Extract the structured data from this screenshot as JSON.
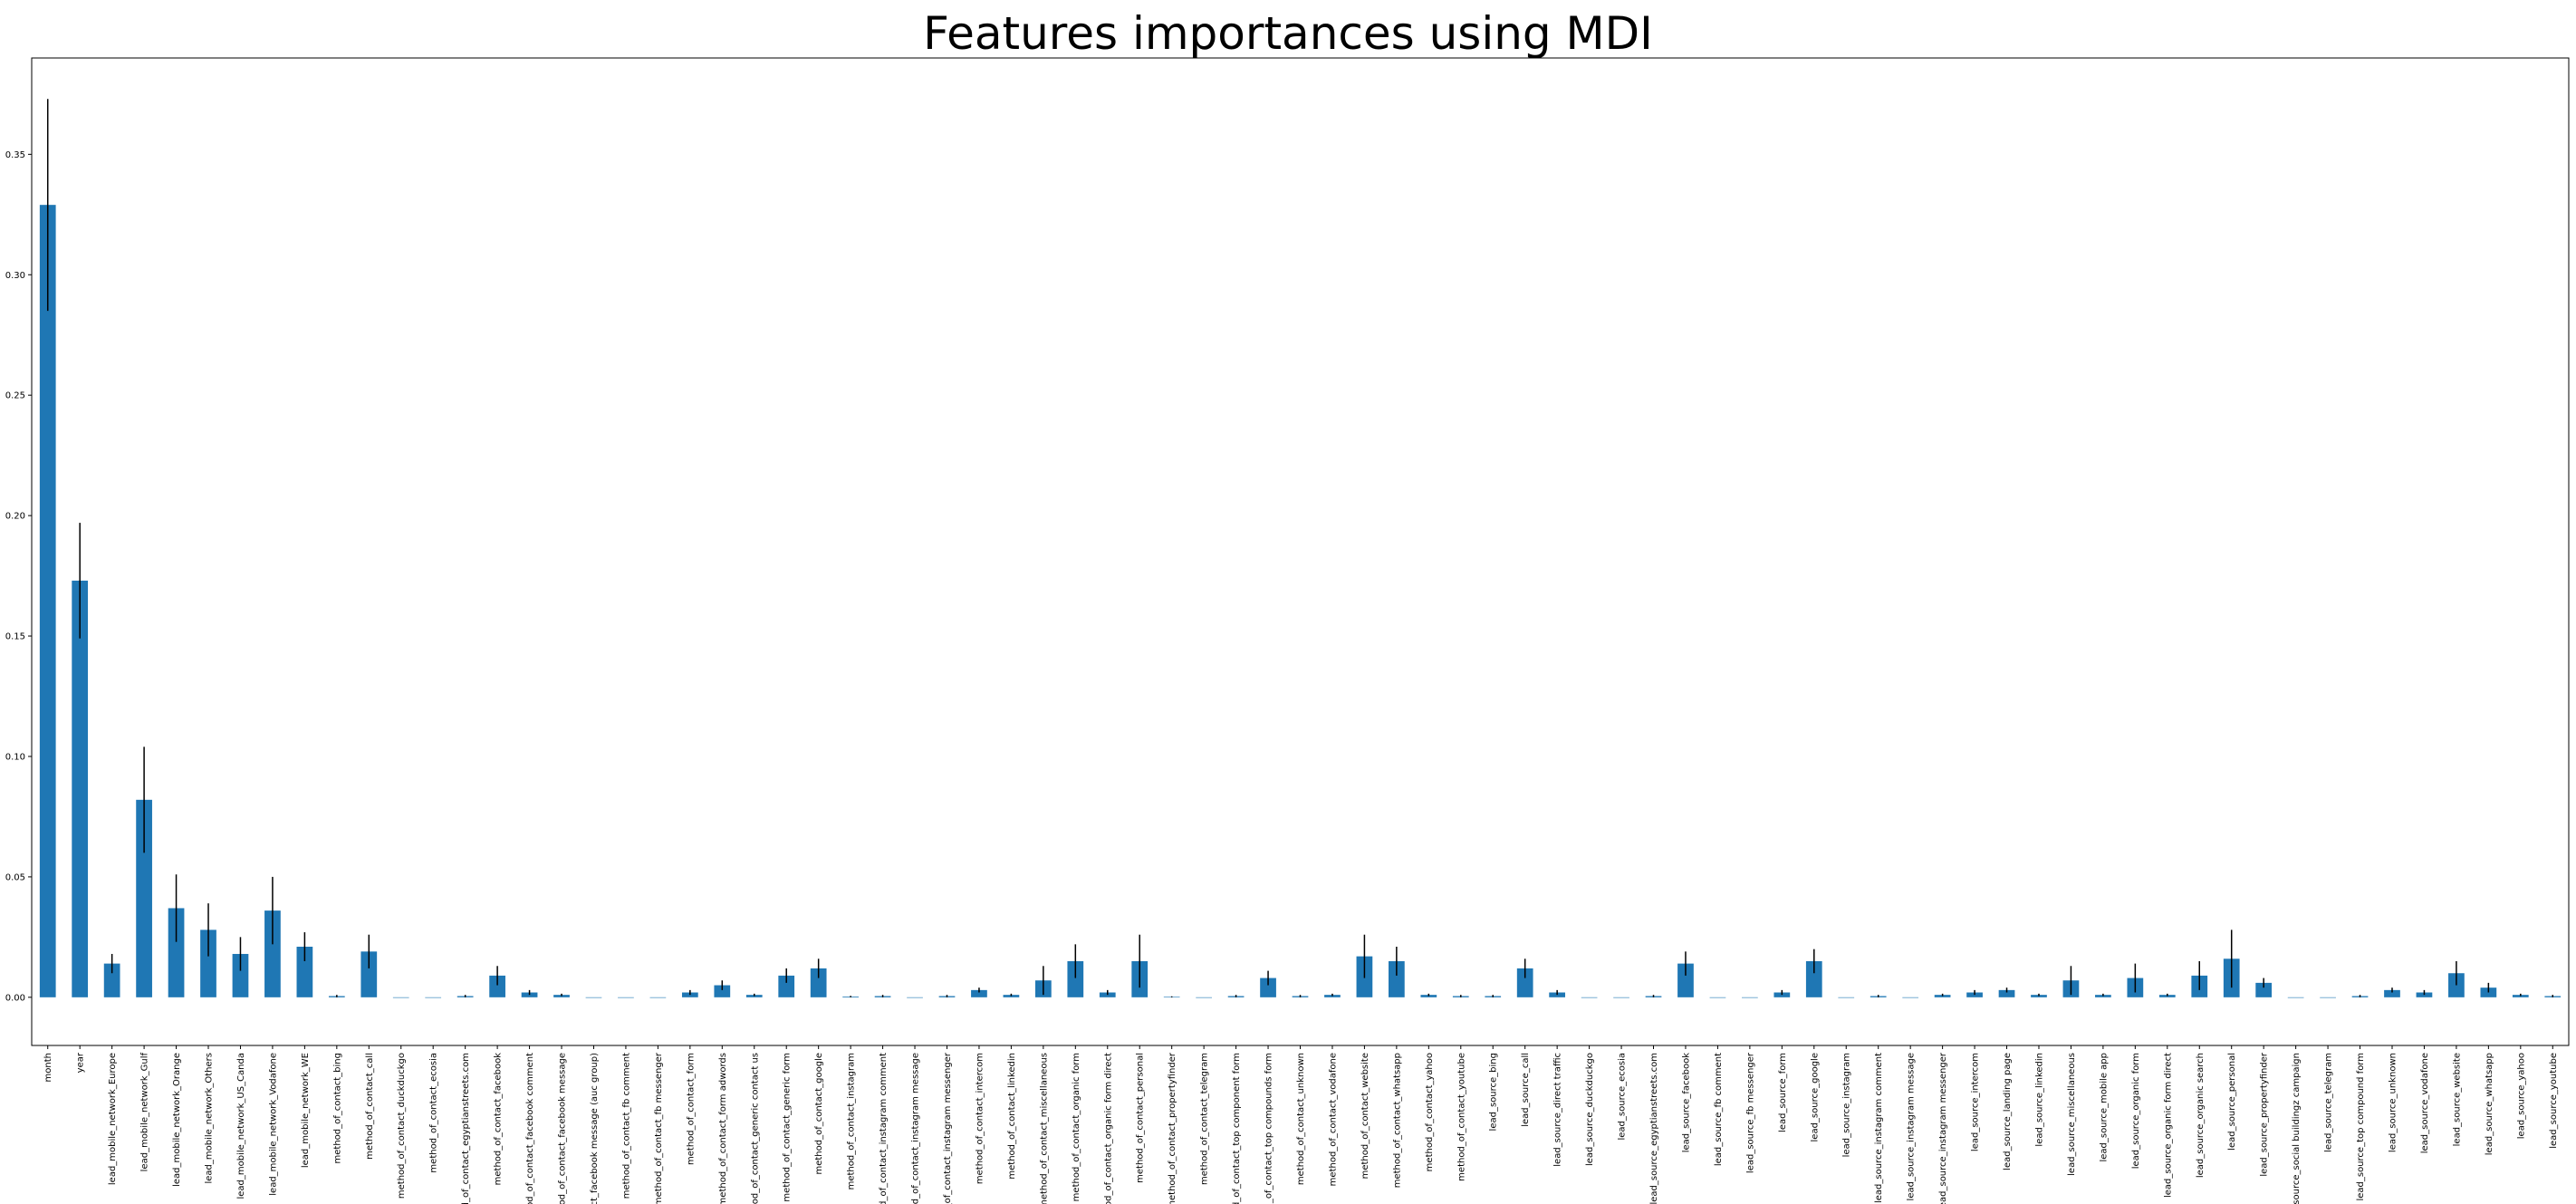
{
  "chart_data": {
    "type": "bar",
    "title": "Features importances using MDI",
    "xlabel": "",
    "ylabel": "",
    "ylim": [
      -0.02,
      0.39
    ],
    "yticks": [
      0.0,
      0.05,
      0.1,
      0.15,
      0.2,
      0.25,
      0.3,
      0.35
    ],
    "ytick_labels": [
      "0.00",
      "0.05",
      "0.10",
      "0.15",
      "0.20",
      "0.25",
      "0.30",
      "0.35"
    ],
    "grid": false,
    "bar_color": "#1f77b4",
    "error_color": "#000000",
    "categories": [
      "month",
      "year",
      "lead_mobile_network_Europe",
      "lead_mobile_network_Gulf",
      "lead_mobile_network_Orange",
      "lead_mobile_network_Others",
      "lead_mobile_network_US_Canda",
      "lead_mobile_network_Vodafone",
      "lead_mobile_network_WE",
      "method_of_contact_bing",
      "method_of_contact_call",
      "method_of_contact_duckduckgo",
      "method_of_contact_ecosia",
      "method_of_contact_egyptianstreets.com",
      "method_of_contact_facebook",
      "method_of_contact_facebook comment",
      "method_of_contact_facebook message",
      "method_of_contact_facebook message (auc group)",
      "method_of_contact_fb comment",
      "method_of_contact_fb messenger",
      "method_of_contact_form",
      "method_of_contact_form adwords",
      "method_of_contact_generic contact us",
      "method_of_contact_generic form",
      "method_of_contact_google",
      "method_of_contact_instagram",
      "method_of_contact_instagram comment",
      "method_of_contact_instagram message",
      "method_of_contact_instagram messenger",
      "method_of_contact_intercom",
      "method_of_contact_linkedin",
      "method_of_contact_miscellaneous",
      "method_of_contact_organic form",
      "method_of_contact_organic form direct",
      "method_of_contact_personal",
      "method_of_contact_propertyfinder",
      "method_of_contact_telegram",
      "method_of_contact_top component form",
      "method_of_contact_top compounds form",
      "method_of_contact_unknown",
      "method_of_contact_vodafone",
      "method_of_contact_website",
      "method_of_contact_whatsapp",
      "method_of_contact_yahoo",
      "method_of_contact_youtube",
      "lead_source_bing",
      "lead_source_call",
      "lead_source_direct traffic",
      "lead_source_duckduckgo",
      "lead_source_ecosia",
      "lead_source_egyptianstreets.com",
      "lead_source_facebook",
      "lead_source_fb comment",
      "lead_source_fb messenger",
      "lead_source_form",
      "lead_source_google",
      "lead_source_instagram",
      "lead_source_instagram comment",
      "lead_source_instagram message",
      "lead_source_instagram messenger",
      "lead_source_intercom",
      "lead_source_landing page",
      "lead_source_linkedin",
      "lead_source_miscellaneous",
      "lead_source_mobile app",
      "lead_source_organic form",
      "lead_source_organic form direct",
      "lead_source_organic search",
      "lead_source_personal",
      "lead_source_propertyfinder",
      "lead_source_social buildingz campaign",
      "lead_source_telegram",
      "lead_source_top compound form",
      "lead_source_unknown",
      "lead_source_vodafone",
      "lead_source_website",
      "lead_source_whatsapp",
      "lead_source_yahoo",
      "lead_source_youtube"
    ],
    "tick_labels": [
      "month",
      "year",
      "lead_mobile_network_Europe",
      "lead_mobile_network_Gulf",
      "lead_mobile_network_Orange",
      "lead_mobile_network_Others",
      "lead_mobile_network_US_Canda",
      "lead_mobile_network_Vodafone",
      "lead_mobile_network_WE",
      "method_of_contact_bing",
      "method_of_contact_call",
      "method_of_contact_duckduckgo",
      "method_of_contact_ecosia",
      "d_of_contact_egyptianstreets.com",
      "method_of_contact_facebook",
      "od_of_contact_facebook comment",
      "nod_of_contact_facebook message",
      "ct_facebook message (auc group)",
      "method_of_contact_fb comment",
      "method_of_contact_fb messenger",
      "method_of_contact_form",
      "method_of_contact_form adwords",
      "nod_of_contact_generic contact us",
      "method_of_contact_generic form",
      "method_of_contact_google",
      "method_of_contact_instagram",
      "d_of_contact_instagram comment",
      "od_of_contact_instagram message",
      "_of_contact_instagram messenger",
      "method_of_contact_intercom",
      "method_of_contact_linkedin",
      "method_of_contact_miscellaneous",
      "method_of_contact_organic form",
      "od_of_contact_organic form direct",
      "method_of_contact_personal",
      "method_of_contact_propertyfinder",
      "method_of_contact_telegram",
      "d_of_contact_top component form",
      "d_of_contact_top compounds form",
      "method_of_contact_unknown",
      "method_of_contact_vodafone",
      "method_of_contact_website",
      "method_of_contact_whatsapp",
      "method_of_contact_yahoo",
      "method_of_contact_youtube",
      "lead_source_bing",
      "lead_source_call",
      "lead_source_direct traffic",
      "lead_source_duckduckgo",
      "lead_source_ecosia",
      "lead_source_egyptianstreets.com",
      "lead_source_facebook",
      "lead_source_fb comment",
      "lead_source_fb messenger",
      "lead_source_form",
      "lead_source_google",
      "lead_source_instagram",
      "lead_source_instagram comment",
      "lead_source_instagram message",
      "lead_source_instagram messenger",
      "lead_source_intercom",
      "lead_source_landing page",
      "lead_source_linkedin",
      "lead_source_miscellaneous",
      "lead_source_mobile app",
      "lead_source_organic form",
      "lead_source_organic form direct",
      "lead_source_organic search",
      "lead_source_personal",
      "lead_source_propertyfinder",
      "_source_social buildingz campaign",
      "lead_source_telegram",
      "lead_source_top compound form",
      "lead_source_unknown",
      "lead_source_vodafone",
      "lead_source_website",
      "lead_source_whatsapp",
      "lead_source_yahoo",
      "lead_source_youtube"
    ],
    "values": [
      0.329,
      0.173,
      0.014,
      0.082,
      0.037,
      0.028,
      0.018,
      0.036,
      0.021,
      0.0005,
      0.019,
      0.0,
      0.0,
      0.0005,
      0.009,
      0.002,
      0.001,
      0.0,
      0.0,
      0.0,
      0.002,
      0.005,
      0.001,
      0.009,
      0.012,
      0.0003,
      0.0005,
      0.0,
      0.0005,
      0.003,
      0.001,
      0.007,
      0.015,
      0.002,
      0.015,
      0.0002,
      0.0,
      0.0005,
      0.008,
      0.0005,
      0.001,
      0.017,
      0.015,
      0.001,
      0.0005,
      0.0005,
      0.012,
      0.002,
      0.0,
      0.0,
      0.0005,
      0.014,
      0.0,
      0.0,
      0.002,
      0.015,
      0.0,
      0.0005,
      0.0,
      0.001,
      0.002,
      0.003,
      0.001,
      0.007,
      0.001,
      0.008,
      0.001,
      0.009,
      0.016,
      0.006,
      0.0,
      0.0,
      0.0005,
      0.003,
      0.002,
      0.01,
      0.004,
      0.001,
      0.0005
    ],
    "errors": [
      0.044,
      0.024,
      0.004,
      0.022,
      0.014,
      0.011,
      0.007,
      0.014,
      0.006,
      0.0005,
      0.007,
      0.0,
      0.0,
      0.0005,
      0.004,
      0.001,
      0.0005,
      0.0,
      0.0,
      0.0,
      0.001,
      0.002,
      0.0005,
      0.003,
      0.004,
      0.0003,
      0.0005,
      0.0,
      0.0005,
      0.001,
      0.0005,
      0.006,
      0.007,
      0.001,
      0.011,
      0.0002,
      0.0,
      0.0005,
      0.003,
      0.0005,
      0.0005,
      0.009,
      0.006,
      0.0005,
      0.0005,
      0.0005,
      0.004,
      0.001,
      0.0,
      0.0,
      0.0005,
      0.005,
      0.0,
      0.0,
      0.001,
      0.005,
      0.0,
      0.0005,
      0.0,
      0.0005,
      0.001,
      0.001,
      0.0005,
      0.006,
      0.0005,
      0.006,
      0.0005,
      0.006,
      0.012,
      0.002,
      0.0,
      0.0,
      0.0005,
      0.001,
      0.001,
      0.005,
      0.002,
      0.0005,
      0.0005
    ]
  }
}
